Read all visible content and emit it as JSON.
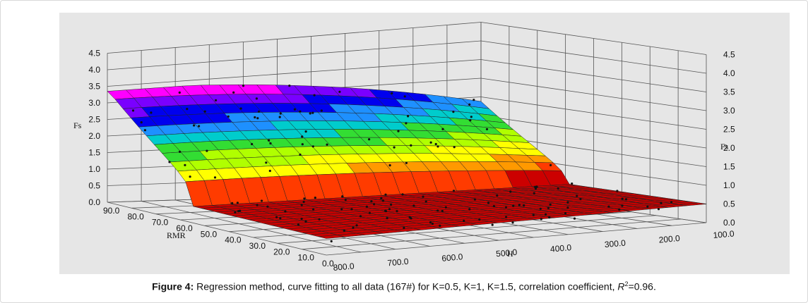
{
  "chart_data": {
    "type": "surface3d",
    "title": "",
    "x_axis": {
      "label": "H",
      "ticks": [
        "800.0",
        "700.0",
        "600.0",
        "500.0",
        "400.0",
        "300.0",
        "200.0",
        "100.0"
      ]
    },
    "y_axis": {
      "label": "RMR",
      "ticks": [
        "90.0",
        "80.0",
        "70.0",
        "60.0",
        "50.0",
        "40.0",
        "30.0",
        "20.0",
        "10.0",
        "0.0"
      ]
    },
    "z_axis": {
      "label": "Fs",
      "ticks": [
        "0.0",
        "0.5",
        "1.0",
        "1.5",
        "2.0",
        "2.5",
        "3.0",
        "3.5",
        "4.0",
        "4.5"
      ],
      "ylim": [
        0,
        4.5
      ]
    },
    "surface": {
      "max_Fs": 3.3,
      "min_Fs": 0.5,
      "colormap": [
        "#cc0000",
        "#ff3b00",
        "#ff9900",
        "#ffff00",
        "#b0ff00",
        "#33dd33",
        "#00cccc",
        "#1e90ff",
        "#0000ee",
        "#7a00ff",
        "#ff00ff"
      ]
    },
    "n_samples": 167,
    "grid": true
  },
  "caption": {
    "label": "Figure 4:",
    "text": " Regression method, curve fitting to all data (167#) for K=0.5, K=1, K=1.5, correlation coefficient, ",
    "r": "R",
    "sup": "2",
    "tail": "=0.96."
  }
}
